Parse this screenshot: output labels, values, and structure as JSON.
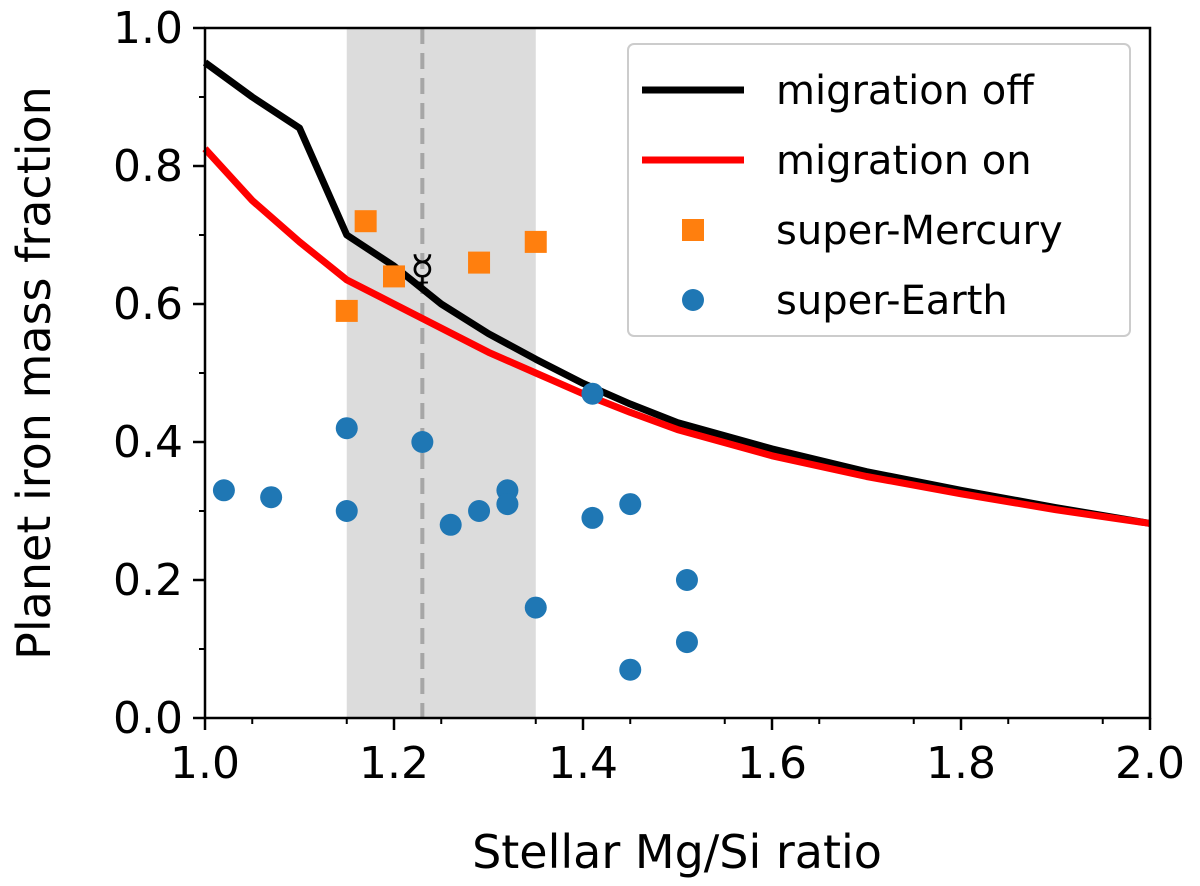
{
  "chart_data": {
    "type": "scatter",
    "xlabel": "Stellar Mg/Si ratio",
    "ylabel": "Planet iron mass fraction",
    "xlim": [
      1.0,
      2.0
    ],
    "ylim": [
      0.0,
      1.0
    ],
    "x_ticks": [
      "1.0",
      "1.2",
      "1.4",
      "1.6",
      "1.8",
      "2.0"
    ],
    "y_ticks": [
      "0.0",
      "0.2",
      "0.4",
      "0.6",
      "0.8",
      "1.0"
    ],
    "legend_position": "top-right",
    "shaded_band": {
      "x_range": [
        1.15,
        1.35
      ],
      "color": "#dcdcdc"
    },
    "solar_reference": {
      "x": 1.23,
      "y": 0.65,
      "symbol": "☿",
      "line_color": "#a6a6a6"
    },
    "series": [
      {
        "name": "migration off",
        "kind": "line",
        "color": "#000000",
        "x": [
          1.0,
          1.05,
          1.1,
          1.15,
          1.2,
          1.25,
          1.3,
          1.35,
          1.4,
          1.45,
          1.5,
          1.6,
          1.7,
          1.8,
          1.9,
          2.0
        ],
        "y": [
          0.95,
          0.9,
          0.855,
          0.7,
          0.655,
          0.6,
          0.557,
          0.52,
          0.485,
          0.455,
          0.428,
          0.39,
          0.357,
          0.33,
          0.305,
          0.282
        ]
      },
      {
        "name": "migration on",
        "kind": "line",
        "color": "#ff0000",
        "x": [
          1.0,
          1.05,
          1.1,
          1.15,
          1.2,
          1.25,
          1.3,
          1.35,
          1.4,
          1.45,
          1.5,
          1.6,
          1.7,
          1.8,
          1.9,
          2.0
        ],
        "y": [
          0.825,
          0.75,
          0.69,
          0.635,
          0.6,
          0.565,
          0.53,
          0.5,
          0.47,
          0.443,
          0.418,
          0.38,
          0.35,
          0.325,
          0.302,
          0.282
        ]
      },
      {
        "name": "super-Mercury",
        "kind": "square",
        "color": "#ff7f0e",
        "x": [
          1.15,
          1.17,
          1.2,
          1.29,
          1.35
        ],
        "y": [
          0.59,
          0.72,
          0.64,
          0.66,
          0.69
        ]
      },
      {
        "name": "super-Earth",
        "kind": "circle",
        "color": "#1f77b4",
        "x": [
          1.02,
          1.07,
          1.15,
          1.15,
          1.23,
          1.26,
          1.29,
          1.32,
          1.32,
          1.35,
          1.41,
          1.41,
          1.45,
          1.45,
          1.51,
          1.51
        ],
        "y": [
          0.33,
          0.32,
          0.42,
          0.3,
          0.4,
          0.28,
          0.3,
          0.33,
          0.31,
          0.16,
          0.47,
          0.29,
          0.31,
          0.07,
          0.2,
          0.11
        ]
      }
    ]
  }
}
